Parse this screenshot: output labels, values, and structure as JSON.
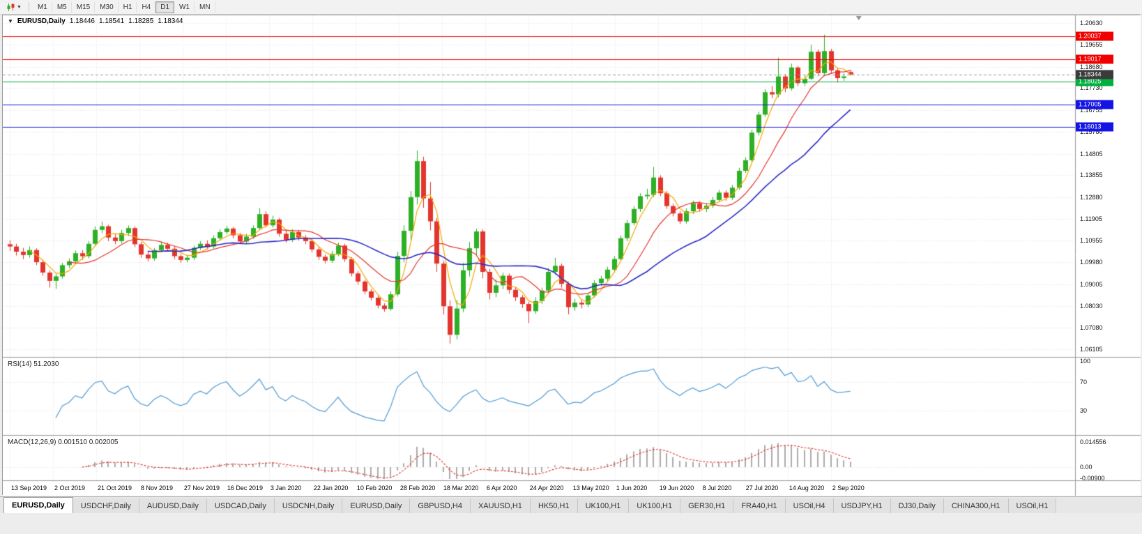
{
  "toolbar": {
    "chart_type_button": "candlestick-chart",
    "timeframes": [
      "M1",
      "M5",
      "M15",
      "M30",
      "H1",
      "H4",
      "D1",
      "W1",
      "MN"
    ],
    "active_timeframe": "D1"
  },
  "chart_header": {
    "symbol_period": "EURUSD,Daily",
    "open": "1.18446",
    "high": "1.18541",
    "low": "1.18285",
    "close": "1.18344"
  },
  "price_axis": {
    "labels": [
      "1.20630",
      "1.19655",
      "1.18680",
      "1.17730",
      "1.16755",
      "1.15780",
      "1.14805",
      "1.13855",
      "1.12880",
      "1.11905",
      "1.10955",
      "1.09980",
      "1.09005",
      "1.08030",
      "1.07080",
      "1.06105"
    ]
  },
  "price_lines": [
    {
      "label": "1.20037",
      "price": 1.20037,
      "color": "#f20000",
      "type": "resistance"
    },
    {
      "label": "1.19017",
      "price": 1.19017,
      "color": "#f20000",
      "type": "resistance"
    },
    {
      "label": "1.18025",
      "price": 1.18025,
      "color": "#00b140",
      "type": "support"
    },
    {
      "label": "1.17005",
      "price": 1.17005,
      "color": "#1414e6",
      "type": "support"
    },
    {
      "label": "1.16013",
      "price": 1.16013,
      "color": "#1414e6",
      "type": "support"
    }
  ],
  "current_price": {
    "label": "1.18344",
    "price": 1.18344,
    "badge_color": "#3b3b3b"
  },
  "date_axis": [
    "13 Sep 2019",
    "2 Oct 2019",
    "21 Oct 2019",
    "8 Nov 2019",
    "27 Nov 2019",
    "16 Dec 2019",
    "3 Jan 2020",
    "22 Jan 2020",
    "10 Feb 2020",
    "28 Feb 2020",
    "18 Mar 2020",
    "6 Apr 2020",
    "24 Apr 2020",
    "13 May 2020",
    "1 Jun 2020",
    "19 Jun 2020",
    "8 Jul 2020",
    "27 Jul 2020",
    "14 Aug 2020",
    "2 Sep 2020"
  ],
  "rsi_panel": {
    "title": "RSI(14) 51.2030",
    "value": "51.2030",
    "axis_labels": [
      "100",
      "70",
      "30"
    ],
    "levels": [
      70,
      30
    ],
    "line_color": "#4f9bd5"
  },
  "macd_panel": {
    "title": "MACD(12,26,9) 0.001510 0.002005",
    "macd_value": "0.001510",
    "signal_value": "0.002005",
    "axis_top": "0.014556",
    "axis_zero": "0.00",
    "axis_bottom": "-0.00900",
    "histogram_color": "#ababab",
    "signal_color": "#e0352d"
  },
  "indicators": {
    "moving_averages": [
      {
        "name": "ma-fast",
        "period": 4,
        "color": "#f5a800"
      },
      {
        "name": "ma-medium",
        "period": 10,
        "color": "#e3352d"
      },
      {
        "name": "ma-slow",
        "period": 22,
        "color": "#2929c8"
      }
    ],
    "rsi_render_period": 7,
    "macd_render": {
      "fast": 5,
      "slow": 11,
      "signal": 4
    }
  },
  "tabs": {
    "active_index": 0,
    "items": [
      "EURUSD,Daily",
      "USDCHF,Daily",
      "AUDUSD,Daily",
      "USDCAD,Daily",
      "USDCNH,Daily",
      "EURUSD,Daily",
      "GBPUSD,H4",
      "XAUUSD,H1",
      "HK50,H1",
      "UK100,H1",
      "UK100,H1",
      "GER30,H1",
      "FRA40,H1",
      "USOil,H4",
      "USDJPY,H1",
      "DJ30,Daily",
      "CHINA300,H1",
      "USOil,H1"
    ]
  },
  "chart_data": {
    "type": "candlestick",
    "symbol": "EURUSD",
    "timeframe": "Daily",
    "up_color": "#2db025",
    "down_color": "#e3352d",
    "candles": [
      [
        1.1078,
        1.1095,
        1.1048,
        1.1068
      ],
      [
        1.1068,
        1.108,
        1.1028,
        1.1045
      ],
      [
        1.1045,
        1.1062,
        1.1012,
        1.103
      ],
      [
        1.103,
        1.1068,
        1.1018,
        1.1052
      ],
      [
        1.1052,
        1.106,
        1.0985,
        1.0998
      ],
      [
        1.0998,
        1.1008,
        1.0938,
        1.0952
      ],
      [
        1.0952,
        1.0962,
        1.0885,
        1.0915
      ],
      [
        1.0915,
        1.0948,
        1.0879,
        1.0935
      ],
      [
        1.0935,
        1.0995,
        1.0925,
        1.0985
      ],
      [
        1.0985,
        1.1015,
        1.0972,
        1.1002
      ],
      [
        1.1002,
        1.105,
        1.0992,
        1.1038
      ],
      [
        1.1038,
        1.1052,
        1.1008,
        1.1025
      ],
      [
        1.1025,
        1.1092,
        1.1015,
        1.108
      ],
      [
        1.108,
        1.1158,
        1.1072,
        1.1142
      ],
      [
        1.1142,
        1.1179,
        1.1128,
        1.1158
      ],
      [
        1.1158,
        1.1165,
        1.1092,
        1.1108
      ],
      [
        1.1108,
        1.1122,
        1.1078,
        1.1092
      ],
      [
        1.1092,
        1.1142,
        1.1082,
        1.1128
      ],
      [
        1.1128,
        1.1162,
        1.1115,
        1.115
      ],
      [
        1.115,
        1.1158,
        1.1065,
        1.1078
      ],
      [
        1.1078,
        1.1088,
        1.1018,
        1.1032
      ],
      [
        1.1032,
        1.1045,
        1.1002,
        1.1015
      ],
      [
        1.1015,
        1.1062,
        1.1005,
        1.1052
      ],
      [
        1.1052,
        1.1088,
        1.1042,
        1.1075
      ],
      [
        1.1075,
        1.1085,
        1.1045,
        1.1058
      ],
      [
        1.1058,
        1.1068,
        1.1012,
        1.1025
      ],
      [
        1.1025,
        1.1035,
        1.0995,
        1.1008
      ],
      [
        1.1008,
        1.1032,
        1.0998,
        1.1018
      ],
      [
        1.1018,
        1.1072,
        1.1008,
        1.1062
      ],
      [
        1.1062,
        1.1092,
        1.1052,
        1.108
      ],
      [
        1.108,
        1.1095,
        1.1055,
        1.1068
      ],
      [
        1.1068,
        1.1118,
        1.1058,
        1.1105
      ],
      [
        1.1105,
        1.1145,
        1.1095,
        1.1132
      ],
      [
        1.1132,
        1.116,
        1.1122,
        1.1148
      ],
      [
        1.1148,
        1.1155,
        1.1105,
        1.1118
      ],
      [
        1.1118,
        1.1128,
        1.1078,
        1.109
      ],
      [
        1.109,
        1.1125,
        1.108,
        1.1112
      ],
      [
        1.1112,
        1.1162,
        1.1102,
        1.115
      ],
      [
        1.115,
        1.1239,
        1.1142,
        1.1212
      ],
      [
        1.1212,
        1.1225,
        1.1152,
        1.1162
      ],
      [
        1.1162,
        1.1205,
        1.1152,
        1.1188
      ],
      [
        1.1188,
        1.1195,
        1.1112,
        1.1125
      ],
      [
        1.1125,
        1.1138,
        1.1085,
        1.1098
      ],
      [
        1.1098,
        1.1145,
        1.1088,
        1.1132
      ],
      [
        1.1132,
        1.1142,
        1.1095,
        1.1108
      ],
      [
        1.1108,
        1.1118,
        1.1078,
        1.1092
      ],
      [
        1.1092,
        1.1102,
        1.1042,
        1.1055
      ],
      [
        1.1055,
        1.1065,
        1.1008,
        1.1022
      ],
      [
        1.1022,
        1.1032,
        1.0992,
        1.1005
      ],
      [
        1.1005,
        1.1048,
        1.0995,
        1.1035
      ],
      [
        1.1035,
        1.1085,
        1.1025,
        1.1072
      ],
      [
        1.1072,
        1.108,
        1.1,
        1.1012
      ],
      [
        1.1012,
        1.102,
        1.0935,
        1.0948
      ],
      [
        1.0948,
        1.0958,
        1.0898,
        1.0912
      ],
      [
        1.0912,
        1.092,
        1.0855,
        1.0868
      ],
      [
        1.0868,
        1.0878,
        1.0828,
        1.084
      ],
      [
        1.084,
        1.0848,
        1.0792,
        1.0805
      ],
      [
        1.0805,
        1.0815,
        1.0778,
        1.079
      ],
      [
        1.079,
        1.0868,
        1.0782,
        1.0855
      ],
      [
        1.0855,
        1.1045,
        1.0845,
        1.1026
      ],
      [
        1.1026,
        1.1162,
        1.0998,
        1.1138
      ],
      [
        1.1138,
        1.1315,
        1.1095,
        1.1288
      ],
      [
        1.1288,
        1.1495,
        1.1255,
        1.1448
      ],
      [
        1.1448,
        1.1468,
        1.124,
        1.1282
      ],
      [
        1.1282,
        1.1355,
        1.114,
        1.118
      ],
      [
        1.118,
        1.1195,
        1.0955,
        1.0992
      ],
      [
        1.0992,
        1.1005,
        1.0765,
        1.0802
      ],
      [
        1.0802,
        1.0828,
        1.0636,
        1.0675
      ],
      [
        1.0675,
        1.083,
        1.0655,
        1.0792
      ],
      [
        1.0792,
        1.0995,
        1.0775,
        1.0962
      ],
      [
        1.0962,
        1.1088,
        1.0935,
        1.106
      ],
      [
        1.106,
        1.1147,
        1.1028,
        1.1135
      ],
      [
        1.1135,
        1.1145,
        1.0926,
        1.0955
      ],
      [
        1.0955,
        1.0968,
        1.0832,
        1.0862
      ],
      [
        1.0862,
        1.0922,
        1.0842,
        1.0895
      ],
      [
        1.0895,
        1.0952,
        1.0878,
        1.0938
      ],
      [
        1.0938,
        1.0948,
        1.0858,
        1.0875
      ],
      [
        1.0875,
        1.0888,
        1.0825,
        1.0842
      ],
      [
        1.0842,
        1.0852,
        1.0795,
        1.0812
      ],
      [
        1.0812,
        1.0822,
        1.0727,
        1.078
      ],
      [
        1.078,
        1.0842,
        1.0768,
        1.0825
      ],
      [
        1.0825,
        1.0885,
        1.0812,
        1.0872
      ],
      [
        1.0872,
        1.0972,
        1.0862,
        1.0955
      ],
      [
        1.0955,
        1.1018,
        1.0942,
        1.0982
      ],
      [
        1.0982,
        1.0992,
        1.0885,
        1.0902
      ],
      [
        1.0902,
        1.0912,
        1.0766,
        1.0798
      ],
      [
        1.0798,
        1.0835,
        1.0782,
        1.0818
      ],
      [
        1.0818,
        1.0832,
        1.0792,
        1.081
      ],
      [
        1.081,
        1.0862,
        1.0798,
        1.085
      ],
      [
        1.085,
        1.0918,
        1.084,
        1.0905
      ],
      [
        1.0905,
        1.0938,
        1.0892,
        1.0925
      ],
      [
        1.0925,
        1.0978,
        1.0912,
        1.0965
      ],
      [
        1.0965,
        1.1025,
        1.0952,
        1.1012
      ],
      [
        1.1012,
        1.1118,
        1.1002,
        1.1105
      ],
      [
        1.1105,
        1.1185,
        1.1092,
        1.1172
      ],
      [
        1.1172,
        1.1248,
        1.1162,
        1.1235
      ],
      [
        1.1235,
        1.1305,
        1.1222,
        1.1292
      ],
      [
        1.1292,
        1.1325,
        1.1278,
        1.1298
      ],
      [
        1.1298,
        1.1422,
        1.1288,
        1.1375
      ],
      [
        1.1375,
        1.1385,
        1.1292,
        1.1305
      ],
      [
        1.1305,
        1.1315,
        1.1235,
        1.1248
      ],
      [
        1.1248,
        1.1258,
        1.1202,
        1.1215
      ],
      [
        1.1215,
        1.1225,
        1.1168,
        1.118
      ],
      [
        1.118,
        1.1238,
        1.117,
        1.1225
      ],
      [
        1.1225,
        1.1272,
        1.1212,
        1.126
      ],
      [
        1.126,
        1.127,
        1.1222,
        1.1235
      ],
      [
        1.1235,
        1.1262,
        1.1222,
        1.125
      ],
      [
        1.125,
        1.1288,
        1.124,
        1.1275
      ],
      [
        1.1275,
        1.132,
        1.1265,
        1.1308
      ],
      [
        1.1308,
        1.1318,
        1.1272,
        1.1285
      ],
      [
        1.1285,
        1.1342,
        1.1275,
        1.133
      ],
      [
        1.133,
        1.1418,
        1.132,
        1.1405
      ],
      [
        1.1405,
        1.1465,
        1.1395,
        1.1452
      ],
      [
        1.1452,
        1.1588,
        1.1442,
        1.1575
      ],
      [
        1.1575,
        1.1668,
        1.1562,
        1.1655
      ],
      [
        1.1655,
        1.1768,
        1.1645,
        1.1755
      ],
      [
        1.1755,
        1.1782,
        1.1728,
        1.1745
      ],
      [
        1.1745,
        1.1909,
        1.1732,
        1.1825
      ],
      [
        1.1825,
        1.1835,
        1.1755,
        1.1772
      ],
      [
        1.1772,
        1.1882,
        1.1762,
        1.1865
      ],
      [
        1.1865,
        1.1872,
        1.1782,
        1.1795
      ],
      [
        1.1795,
        1.1828,
        1.1782,
        1.1815
      ],
      [
        1.1815,
        1.1966,
        1.1808,
        1.1935
      ],
      [
        1.1935,
        1.1945,
        1.1826,
        1.184
      ],
      [
        1.184,
        1.2011,
        1.1832,
        1.1938
      ],
      [
        1.1938,
        1.1948,
        1.1838,
        1.1852
      ],
      [
        1.1852,
        1.1862,
        1.1798,
        1.1818
      ],
      [
        1.1818,
        1.1838,
        1.1805,
        1.1825
      ],
      [
        1.18446,
        1.18541,
        1.18285,
        1.18344
      ]
    ]
  }
}
